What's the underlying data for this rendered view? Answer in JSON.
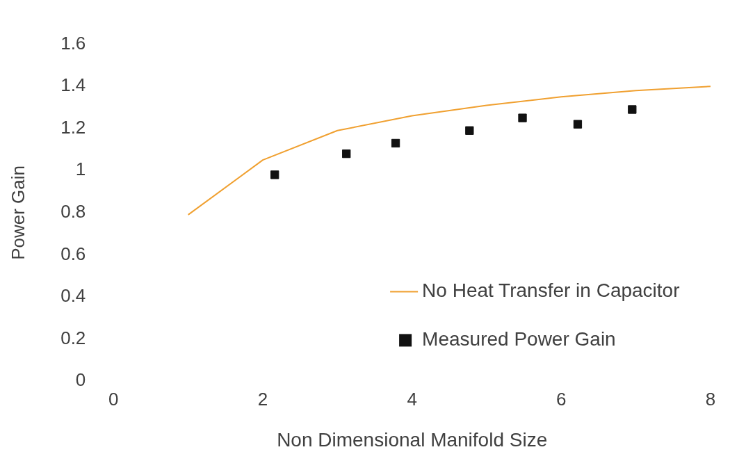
{
  "chart_data": {
    "type": "line",
    "xlabel": "Non Dimensional Manifold Size",
    "ylabel": "Power Gain",
    "xlim": [
      0,
      8
    ],
    "xticks": [
      0,
      2,
      4,
      6,
      8
    ],
    "ylim": [
      0,
      1.6
    ],
    "yticks": [
      0,
      0.2,
      0.4,
      0.6,
      0.8,
      1,
      1.2,
      1.4,
      1.6
    ],
    "grid": false,
    "legend": "bottom right",
    "series": [
      {
        "name": "No Heat Transfer in Capacitor",
        "color": "#f0a030",
        "marker": "none",
        "line_style": "solid",
        "x": [
          1,
          2,
          3,
          4,
          5,
          6,
          7,
          8
        ],
        "values": [
          0.79,
          1.05,
          1.19,
          1.26,
          1.31,
          1.35,
          1.38,
          1.4
        ]
      },
      {
        "name": "Measured Power Gain",
        "type": "scatter",
        "color": "#111111",
        "marker": "square",
        "x": [
          2.16,
          3.12,
          3.78,
          4.77,
          5.48,
          6.22,
          6.95
        ],
        "values": [
          0.98,
          1.08,
          1.13,
          1.19,
          1.25,
          1.22,
          1.29
        ]
      }
    ]
  }
}
